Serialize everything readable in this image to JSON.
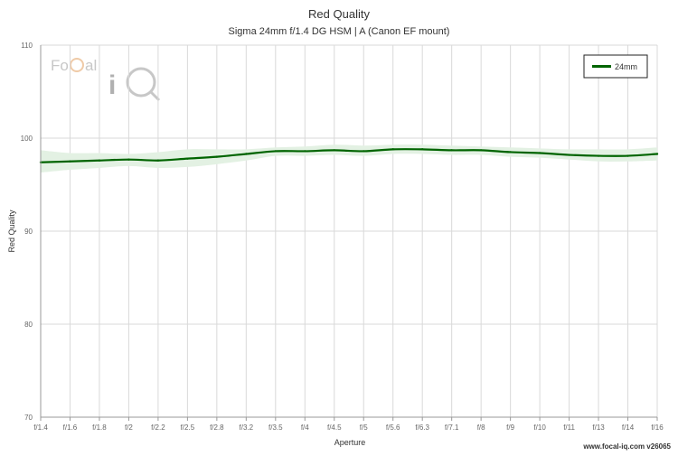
{
  "chart_data": {
    "type": "line",
    "title": "Red Quality",
    "subtitle": "Sigma 24mm f/1.4 DG HSM | A (Canon EF mount)",
    "xlabel": "Aperture",
    "ylabel": "Red Quality",
    "ylim": [
      70,
      110
    ],
    "y_ticks": [
      "70",
      "80",
      "90",
      "100",
      "110"
    ],
    "categories": [
      "f/1.4",
      "f/1.6",
      "f/1.8",
      "f/2",
      "f/2.2",
      "f/2.5",
      "f/2.8",
      "f/3.2",
      "f/3.5",
      "f/4",
      "f/4.5",
      "f/5",
      "f/5.6",
      "f/6.3",
      "f/7.1",
      "f/8",
      "f/9",
      "f/10",
      "f/11",
      "f/13",
      "f/14",
      "f/16"
    ],
    "series": [
      {
        "name": "24mm",
        "color": "#006400",
        "values": [
          97.4,
          97.5,
          97.6,
          97.7,
          97.6,
          97.8,
          98.0,
          98.3,
          98.6,
          98.6,
          98.7,
          98.6,
          98.8,
          98.8,
          98.7,
          98.7,
          98.5,
          98.4,
          98.2,
          98.1,
          98.1,
          98.3
        ],
        "upper": [
          98.7,
          98.4,
          98.4,
          98.3,
          98.5,
          98.8,
          98.8,
          98.8,
          99.0,
          99.1,
          99.3,
          99.2,
          99.3,
          99.3,
          99.2,
          99.1,
          99.0,
          98.9,
          98.8,
          98.8,
          98.8,
          99.0
        ],
        "lower": [
          96.3,
          96.6,
          96.8,
          97.0,
          96.8,
          96.9,
          97.2,
          97.6,
          98.1,
          98.1,
          98.2,
          98.1,
          98.3,
          98.3,
          98.2,
          98.2,
          98.0,
          97.9,
          97.7,
          97.5,
          97.5,
          97.6
        ]
      }
    ],
    "grid": true,
    "legend_position": "top-right",
    "band_color": "#e3f1e3"
  },
  "footer": "www.focal-iq.com  v26065",
  "logo": {
    "text": "FoCal iQ",
    "icon": "focal-iq-logo"
  }
}
